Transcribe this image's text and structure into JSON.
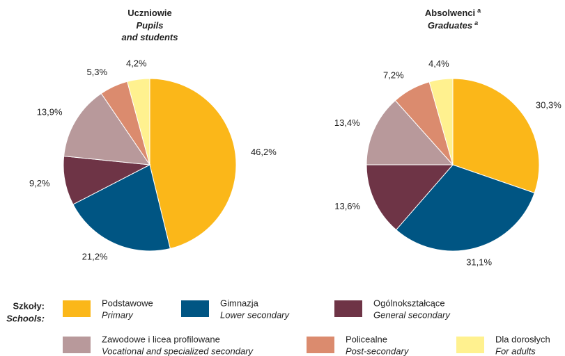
{
  "chart_data": [
    {
      "type": "pie",
      "title": "Uczniowie",
      "subtitle_lines": [
        "Pupils",
        "and students"
      ],
      "values": [
        46.2,
        21.2,
        9.2,
        13.9,
        5.3,
        4.2
      ],
      "value_labels": [
        "46,2%",
        "21,2%",
        "9,2%",
        "13,9%",
        "5,3%",
        "4,2%"
      ]
    },
    {
      "type": "pie",
      "title": "Absolwenci",
      "title_note": "a",
      "subtitle_lines": [
        "Graduates"
      ],
      "subtitle_note": "a",
      "values": [
        30.3,
        31.1,
        13.6,
        13.4,
        7.2,
        4.4
      ],
      "value_labels": [
        "30,3%",
        "31,1%",
        "13,6%",
        "13,4%",
        "7,2%",
        "4,4%"
      ]
    }
  ],
  "legend": {
    "title": "Szkoły:",
    "title_en": "Schools:",
    "items": [
      {
        "label": "Podstawowe",
        "label_en": "Primary",
        "color": "#fbb719"
      },
      {
        "label": "Gimnazja",
        "label_en": "Lower secondary",
        "color": "#005583"
      },
      {
        "label": "Ogólnokształcące",
        "label_en": "General secondary",
        "color": "#6e3446"
      },
      {
        "label": "Zawodowe i licea profilowane",
        "label_en": "Vocational and specialized secondary",
        "color": "#b8999b"
      },
      {
        "label": "Policealne",
        "label_en": "Post-secondary",
        "color": "#db8b6e"
      },
      {
        "label": "Dla dorosłych",
        "label_en": "For adults",
        "color": "#fff18f"
      }
    ]
  }
}
